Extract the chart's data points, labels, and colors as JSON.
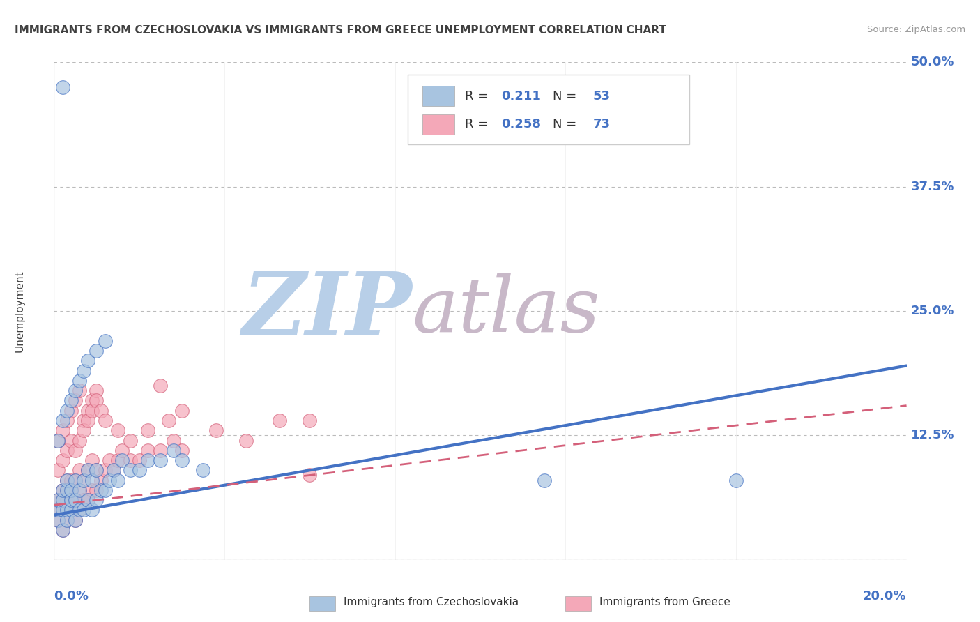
{
  "title": "IMMIGRANTS FROM CZECHOSLOVAKIA VS IMMIGRANTS FROM GREECE UNEMPLOYMENT CORRELATION CHART",
  "source": "Source: ZipAtlas.com",
  "ylabel": "Unemployment",
  "xlim": [
    0.0,
    0.2
  ],
  "ylim": [
    0.0,
    0.5
  ],
  "yticks": [
    0.0,
    0.125,
    0.25,
    0.375,
    0.5
  ],
  "ytick_labels": [
    "",
    "12.5%",
    "25.0%",
    "37.5%",
    "50.0%"
  ],
  "legend_R1": "0.211",
  "legend_N1": "53",
  "legend_R2": "0.258",
  "legend_N2": "73",
  "color_czech": "#a8c4e0",
  "color_greece": "#f4a8b8",
  "color_line_czech": "#4472c4",
  "color_line_greece": "#d4607a",
  "background_color": "#ffffff",
  "watermark_zip": "ZIP",
  "watermark_atlas": "atlas",
  "watermark_color_zip": "#b8cfe8",
  "watermark_color_atlas": "#c8b8c8",
  "grid_color": "#bbbbbb",
  "title_color": "#404040",
  "axis_label_color": "#4472c4",
  "czech_trend_x0": 0.0,
  "czech_trend_y0": 0.045,
  "czech_trend_x1": 0.2,
  "czech_trend_y1": 0.195,
  "greece_trend_x0": 0.0,
  "greece_trend_y0": 0.055,
  "greece_trend_x1": 0.2,
  "greece_trend_y1": 0.155,
  "czech_scatter_x": [
    0.001,
    0.001,
    0.001,
    0.002,
    0.002,
    0.002,
    0.002,
    0.003,
    0.003,
    0.003,
    0.003,
    0.004,
    0.004,
    0.004,
    0.005,
    0.005,
    0.005,
    0.006,
    0.006,
    0.007,
    0.007,
    0.008,
    0.008,
    0.009,
    0.009,
    0.01,
    0.01,
    0.011,
    0.012,
    0.013,
    0.014,
    0.015,
    0.016,
    0.018,
    0.02,
    0.022,
    0.025,
    0.028,
    0.03,
    0.035,
    0.001,
    0.002,
    0.003,
    0.004,
    0.005,
    0.006,
    0.007,
    0.008,
    0.01,
    0.012,
    0.115,
    0.16,
    0.002
  ],
  "czech_scatter_y": [
    0.04,
    0.05,
    0.06,
    0.03,
    0.05,
    0.06,
    0.07,
    0.04,
    0.05,
    0.07,
    0.08,
    0.05,
    0.06,
    0.07,
    0.04,
    0.06,
    0.08,
    0.05,
    0.07,
    0.05,
    0.08,
    0.06,
    0.09,
    0.05,
    0.08,
    0.06,
    0.09,
    0.07,
    0.07,
    0.08,
    0.09,
    0.08,
    0.1,
    0.09,
    0.09,
    0.1,
    0.1,
    0.11,
    0.1,
    0.09,
    0.12,
    0.14,
    0.15,
    0.16,
    0.17,
    0.18,
    0.19,
    0.2,
    0.21,
    0.22,
    0.08,
    0.08,
    0.475
  ],
  "greece_scatter_x": [
    0.001,
    0.001,
    0.001,
    0.002,
    0.002,
    0.002,
    0.002,
    0.003,
    0.003,
    0.003,
    0.003,
    0.004,
    0.004,
    0.004,
    0.005,
    0.005,
    0.005,
    0.006,
    0.006,
    0.006,
    0.007,
    0.007,
    0.008,
    0.008,
    0.009,
    0.009,
    0.01,
    0.01,
    0.011,
    0.012,
    0.013,
    0.014,
    0.015,
    0.016,
    0.018,
    0.02,
    0.022,
    0.025,
    0.028,
    0.03,
    0.001,
    0.002,
    0.003,
    0.004,
    0.005,
    0.006,
    0.007,
    0.008,
    0.009,
    0.01,
    0.001,
    0.002,
    0.003,
    0.004,
    0.005,
    0.006,
    0.007,
    0.008,
    0.009,
    0.01,
    0.011,
    0.012,
    0.015,
    0.018,
    0.022,
    0.027,
    0.03,
    0.038,
    0.045,
    0.053,
    0.06,
    0.025,
    0.06
  ],
  "greece_scatter_y": [
    0.04,
    0.05,
    0.06,
    0.03,
    0.05,
    0.06,
    0.07,
    0.04,
    0.06,
    0.07,
    0.08,
    0.05,
    0.07,
    0.08,
    0.04,
    0.06,
    0.08,
    0.05,
    0.07,
    0.09,
    0.06,
    0.08,
    0.06,
    0.09,
    0.07,
    0.1,
    0.07,
    0.09,
    0.08,
    0.09,
    0.1,
    0.09,
    0.1,
    0.11,
    0.1,
    0.1,
    0.11,
    0.11,
    0.12,
    0.11,
    0.12,
    0.13,
    0.14,
    0.15,
    0.16,
    0.17,
    0.14,
    0.15,
    0.16,
    0.17,
    0.09,
    0.1,
    0.11,
    0.12,
    0.11,
    0.12,
    0.13,
    0.14,
    0.15,
    0.16,
    0.15,
    0.14,
    0.13,
    0.12,
    0.13,
    0.14,
    0.15,
    0.13,
    0.12,
    0.14,
    0.14,
    0.175,
    0.085
  ]
}
